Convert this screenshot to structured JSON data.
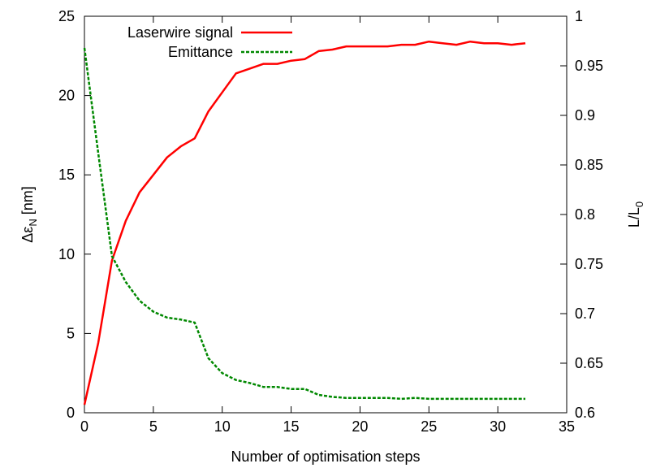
{
  "chart_data": {
    "type": "line",
    "xlabel": "Number of optimisation steps",
    "ylabel_left": {
      "main": "Δε",
      "sub": "N",
      "unit": " [nm]"
    },
    "ylabel_right": {
      "main": "L/L",
      "sub": "0"
    },
    "xlim": [
      0,
      35
    ],
    "ylim_left": [
      0,
      25
    ],
    "ylim_right": [
      0.6,
      1.0
    ],
    "x_ticks": [
      "0",
      "5",
      "10",
      "15",
      "20",
      "25",
      "30",
      "35"
    ],
    "y_ticks_left": [
      "0",
      "5",
      "10",
      "15",
      "20",
      "25"
    ],
    "y_ticks_right": [
      "0.6",
      "0.65",
      "0.7",
      "0.75",
      "0.8",
      "0.85",
      "0.9",
      "0.95",
      "1"
    ],
    "grid": false,
    "legend_position": "top-left",
    "series": [
      {
        "name": "Laserwire signal",
        "axis": "left",
        "color": "#ff0000",
        "style": "solid",
        "x": [
          0,
          1,
          2,
          3,
          4,
          5,
          6,
          7,
          8,
          9,
          10,
          11,
          12,
          13,
          14,
          15,
          16,
          17,
          18,
          19,
          20,
          21,
          22,
          23,
          24,
          25,
          26,
          27,
          28,
          29,
          30,
          31,
          32
        ],
        "values": [
          0.5,
          4.4,
          9.6,
          12.1,
          13.9,
          15.0,
          16.1,
          16.8,
          17.3,
          19.0,
          20.2,
          21.4,
          21.7,
          22.0,
          22.0,
          22.2,
          22.3,
          22.8,
          22.9,
          23.1,
          23.1,
          23.1,
          23.1,
          23.2,
          23.2,
          23.4,
          23.3,
          23.2,
          23.4,
          23.3,
          23.3,
          23.2,
          23.3
        ]
      },
      {
        "name": "Emittance",
        "axis": "right",
        "color": "#008800",
        "style": "dashed",
        "x": [
          0,
          1,
          2,
          3,
          4,
          5,
          6,
          7,
          8,
          9,
          10,
          11,
          12,
          13,
          14,
          15,
          16,
          17,
          18,
          19,
          20,
          21,
          22,
          23,
          24,
          25,
          26,
          27,
          28,
          29,
          30,
          31,
          32
        ],
        "values": [
          0.968,
          0.862,
          0.758,
          0.732,
          0.713,
          0.702,
          0.696,
          0.694,
          0.691,
          0.655,
          0.64,
          0.633,
          0.63,
          0.626,
          0.626,
          0.624,
          0.624,
          0.618,
          0.616,
          0.615,
          0.615,
          0.615,
          0.615,
          0.614,
          0.615,
          0.614,
          0.614,
          0.614,
          0.614,
          0.614,
          0.614,
          0.614,
          0.614
        ]
      }
    ]
  }
}
